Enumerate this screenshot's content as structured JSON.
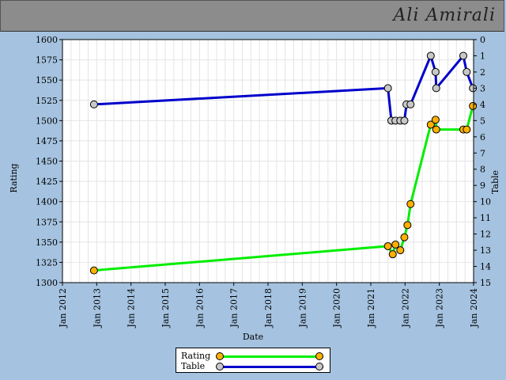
{
  "header": {
    "title": "Ali Amirali"
  },
  "legend": {
    "items": [
      {
        "label": "Rating",
        "line_color": "#00ee00",
        "marker_color": "#ffb000"
      },
      {
        "label": "Table",
        "line_color": "#0000cc",
        "marker_color": "#c8c8c8"
      }
    ]
  },
  "chart_data": {
    "type": "line",
    "xlabel": "Date",
    "ylabel": "Rating",
    "y2label": "Table",
    "xlim": [
      2012.0,
      2024.0
    ],
    "ylim": [
      1300,
      1600
    ],
    "y2lim": [
      0,
      15
    ],
    "y2_inverted": true,
    "x_ticks": [
      {
        "x": 2012.0,
        "label": "Jan 2012"
      },
      {
        "x": 2013.0,
        "label": "Jan 2013"
      },
      {
        "x": 2014.0,
        "label": "Jan 2014"
      },
      {
        "x": 2015.0,
        "label": "Jan 2015"
      },
      {
        "x": 2016.0,
        "label": "Jan 2016"
      },
      {
        "x": 2017.0,
        "label": "Jan 2017"
      },
      {
        "x": 2018.0,
        "label": "Jan 2018"
      },
      {
        "x": 2019.0,
        "label": "Jan 2019"
      },
      {
        "x": 2020.0,
        "label": "Jan 2020"
      },
      {
        "x": 2021.0,
        "label": "Jan 2021"
      },
      {
        "x": 2022.0,
        "label": "Jan 2022"
      },
      {
        "x": 2023.0,
        "label": "Jan 2023"
      },
      {
        "x": 2024.0,
        "label": "Jan 2024"
      }
    ],
    "y_ticks": [
      1300,
      1325,
      1350,
      1375,
      1400,
      1425,
      1450,
      1475,
      1500,
      1525,
      1550,
      1575,
      1600
    ],
    "y2_ticks": [
      0,
      1,
      2,
      3,
      4,
      5,
      6,
      7,
      8,
      9,
      10,
      11,
      12,
      13,
      14,
      15
    ],
    "grid": true,
    "series": [
      {
        "name": "Rating",
        "axis": "left",
        "line_color": "#00ee00",
        "marker_color": "#ffb000",
        "points": [
          {
            "x": 2012.92,
            "y": 1315
          },
          {
            "x": 2021.5,
            "y": 1345
          },
          {
            "x": 2021.64,
            "y": 1335
          },
          {
            "x": 2021.72,
            "y": 1347
          },
          {
            "x": 2021.86,
            "y": 1340
          },
          {
            "x": 2021.98,
            "y": 1356
          },
          {
            "x": 2022.07,
            "y": 1371
          },
          {
            "x": 2022.16,
            "y": 1397
          },
          {
            "x": 2022.75,
            "y": 1495
          },
          {
            "x": 2022.89,
            "y": 1501
          },
          {
            "x": 2022.91,
            "y": 1489
          },
          {
            "x": 2023.7,
            "y": 1489
          },
          {
            "x": 2023.8,
            "y": 1489
          },
          {
            "x": 2023.98,
            "y": 1518
          }
        ]
      },
      {
        "name": "Table",
        "axis": "right",
        "line_color": "#0000cc",
        "marker_color": "#c8c8c8",
        "points": [
          {
            "x": 2012.92,
            "y": 4
          },
          {
            "x": 2021.5,
            "y": 3
          },
          {
            "x": 2021.6,
            "y": 5
          },
          {
            "x": 2021.72,
            "y": 5
          },
          {
            "x": 2021.86,
            "y": 5
          },
          {
            "x": 2021.98,
            "y": 5
          },
          {
            "x": 2022.04,
            "y": 4
          },
          {
            "x": 2022.16,
            "y": 4
          },
          {
            "x": 2022.75,
            "y": 1
          },
          {
            "x": 2022.89,
            "y": 2
          },
          {
            "x": 2022.91,
            "y": 3
          },
          {
            "x": 2023.7,
            "y": 1
          },
          {
            "x": 2023.8,
            "y": 2
          },
          {
            "x": 2023.98,
            "y": 3
          }
        ]
      }
    ]
  }
}
